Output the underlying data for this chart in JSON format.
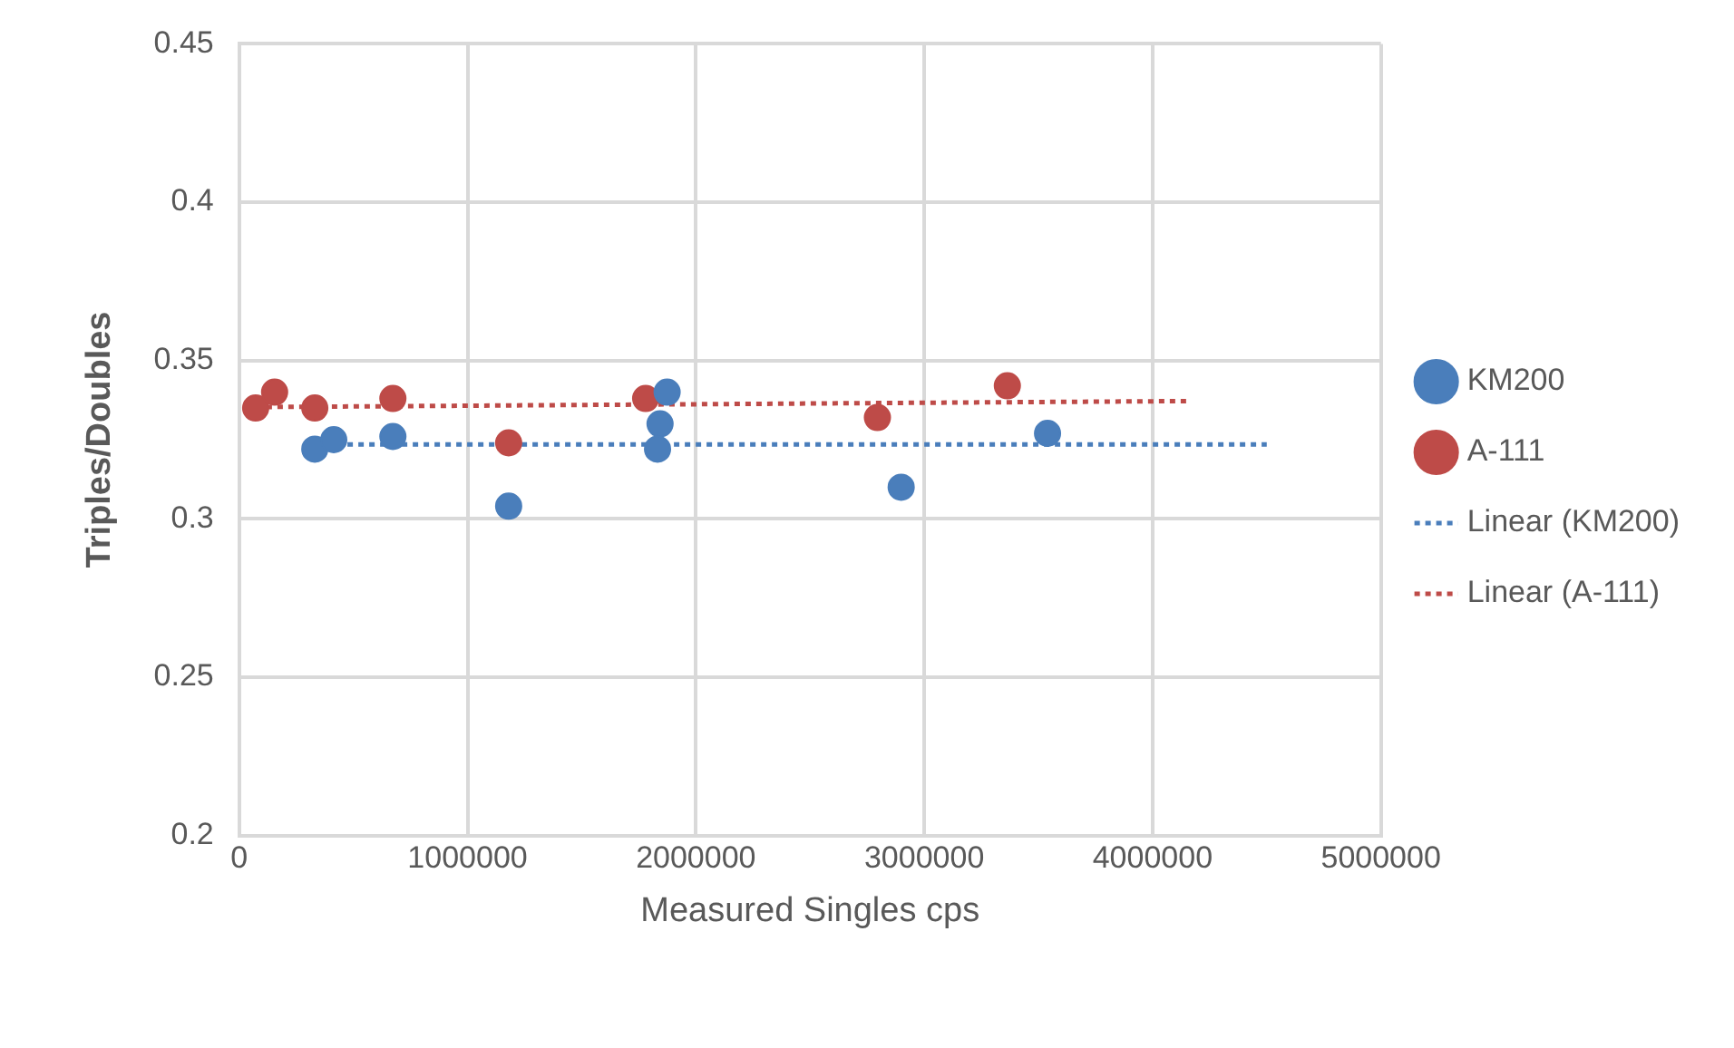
{
  "chart_data": {
    "type": "scatter",
    "xlabel": "Measured Singles cps",
    "ylabel": "Triples/Doubles",
    "xlim": [
      0,
      5000000
    ],
    "xticks": [
      0,
      1000000,
      2000000,
      3000000,
      4000000,
      5000000
    ],
    "ylim": [
      0.2,
      0.45
    ],
    "yticks": [
      0.2,
      0.25,
      0.3,
      0.35,
      0.4,
      0.45
    ],
    "grid": true,
    "legend": "right",
    "marker": "circle",
    "series": [
      {
        "name": "KM200",
        "color": "#4a7ebb",
        "x": [
          331000,
          414000,
          673000,
          1180000,
          1843000,
          1832000,
          1874000,
          2899000,
          3540000
        ],
        "values": [
          0.322,
          0.325,
          0.326,
          0.304,
          0.33,
          0.322,
          0.34,
          0.31,
          0.327
        ]
      },
      {
        "name": "A-111",
        "color": "#be4b48",
        "x": [
          72000,
          155000,
          331000,
          673000,
          1180000,
          1780000,
          2795000,
          3364000
        ],
        "values": [
          0.335,
          0.34,
          0.335,
          0.338,
          0.324,
          0.338,
          0.332,
          0.342
        ]
      },
      {
        "name": "Linear (KM200)",
        "type": "line",
        "line_style": "dotted",
        "marker": "none",
        "color": "#4a7ebb",
        "x": [
          331000,
          4500000
        ],
        "values": [
          0.3235,
          0.3235
        ]
      },
      {
        "name": "Linear (A-111)",
        "type": "line",
        "line_style": "dotted",
        "marker": "none",
        "color": "#be4b48",
        "x": [
          72000,
          4150000
        ],
        "values": [
          0.3353,
          0.3372
        ]
      }
    ]
  }
}
